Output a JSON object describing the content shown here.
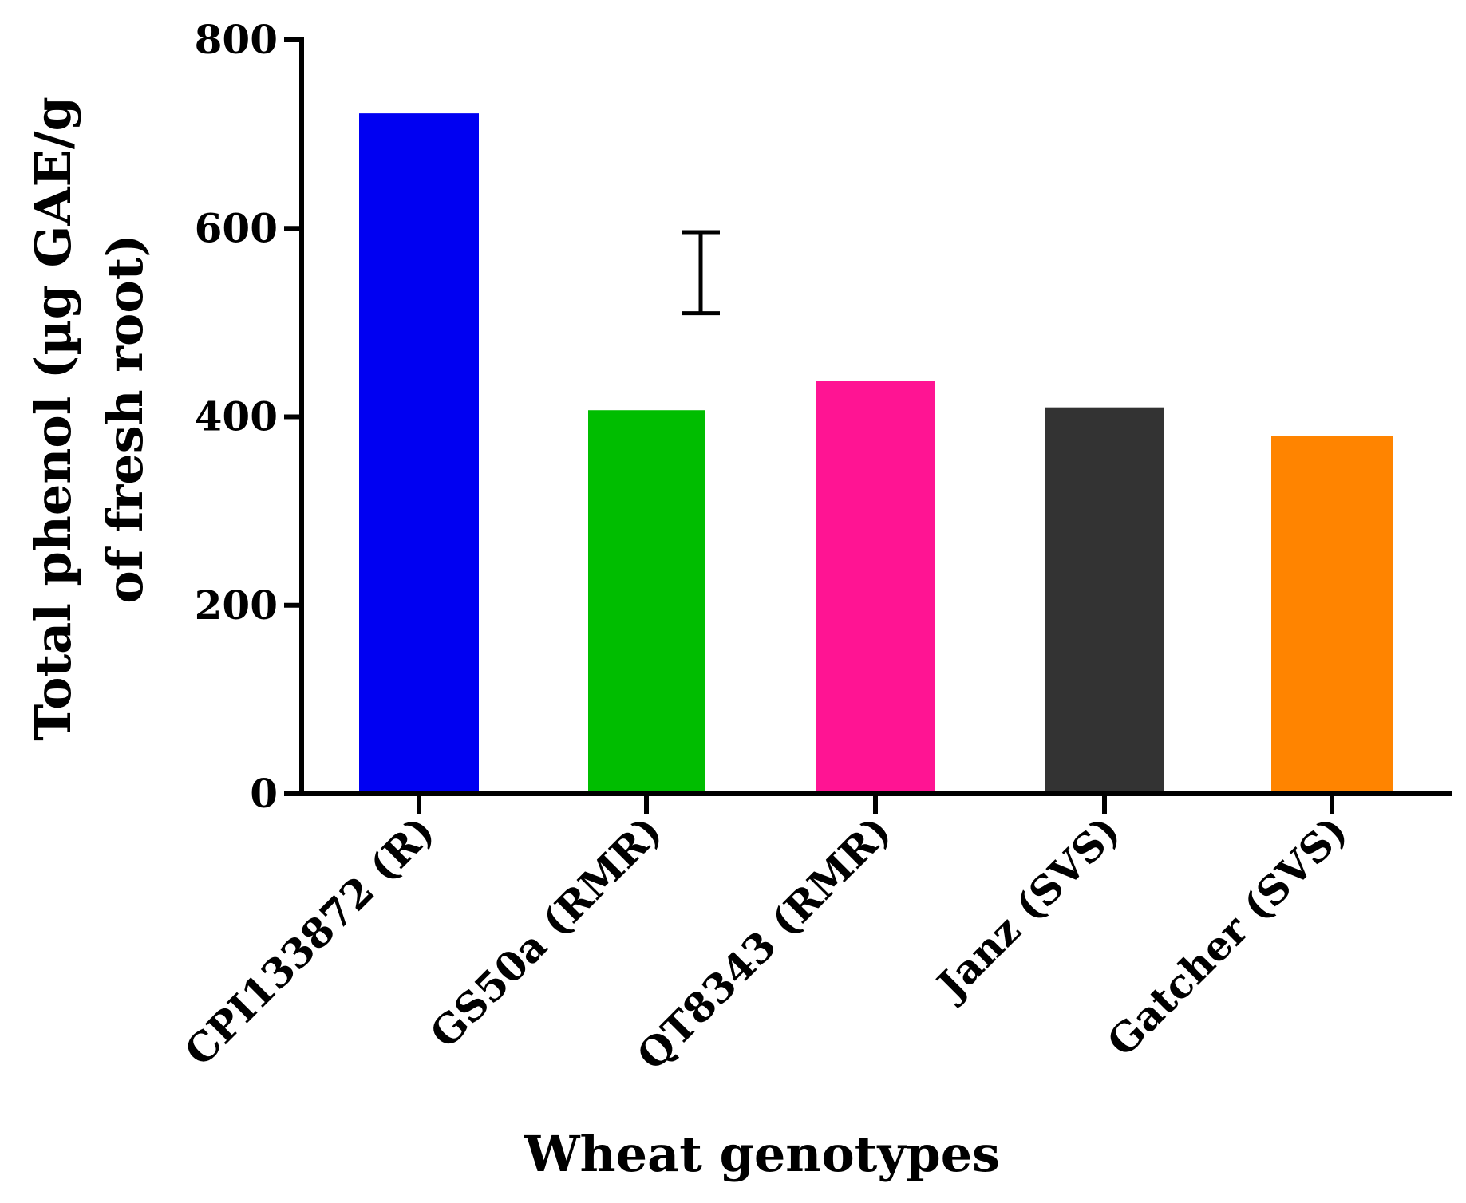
{
  "chart_data": {
    "type": "bar",
    "xlabel": "Wheat genotypes",
    "ylabel_lines": [
      "Total phenol (µg GAE/g",
      "of fresh root)"
    ],
    "ylim": [
      0,
      800
    ],
    "yticks": [
      "0",
      "200",
      "400",
      "600",
      "800"
    ],
    "categories": [
      "CPI133872 (R)",
      "GS50a (RMR)",
      "QT8343 (RMR)",
      "Janz (SVS)",
      "Gatcher (SVS)"
    ],
    "values": [
      722,
      407,
      438,
      410,
      380
    ],
    "colors": [
      "#0000f2",
      "#00bd00",
      "#ff1493",
      "#333333",
      "#ff8400"
    ],
    "error_bar": {
      "low": 510,
      "high": 596
    },
    "grid": false,
    "legend": "none"
  }
}
